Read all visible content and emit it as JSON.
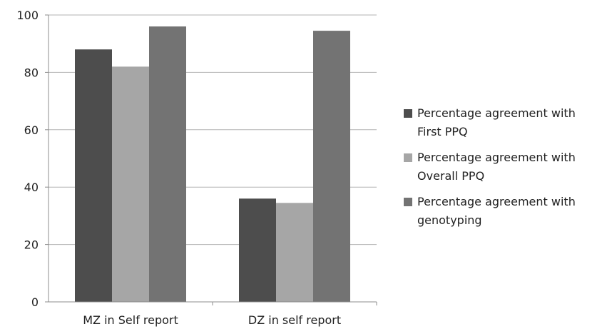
{
  "chart_data": {
    "type": "bar",
    "title": "",
    "xlabel": "",
    "ylabel": "",
    "ylim": [
      0,
      100
    ],
    "yticks": [
      0,
      20,
      40,
      60,
      80,
      100
    ],
    "grid": true,
    "legend_position": "right",
    "categories": [
      "MZ in Self report",
      "DZ in self report"
    ],
    "series": [
      {
        "name": "Percentage agreement with First PPQ",
        "color": "#4d4d4d",
        "values": [
          88,
          36
        ]
      },
      {
        "name": "Percentage agreement with Overall PPQ",
        "color": "#a6a6a6",
        "values": [
          82,
          34.5
        ]
      },
      {
        "name": "Percentage agreement with genotyping",
        "color": "#737373",
        "values": [
          96,
          94.5
        ]
      }
    ]
  },
  "legend": {
    "items": [
      {
        "label": "Percentage agreement with First PPQ",
        "color": "#4d4d4d"
      },
      {
        "label": "Percentage agreement with Overall PPQ",
        "color": "#a6a6a6"
      },
      {
        "label": "Percentage agreement with genotyping",
        "color": "#737373"
      }
    ]
  }
}
